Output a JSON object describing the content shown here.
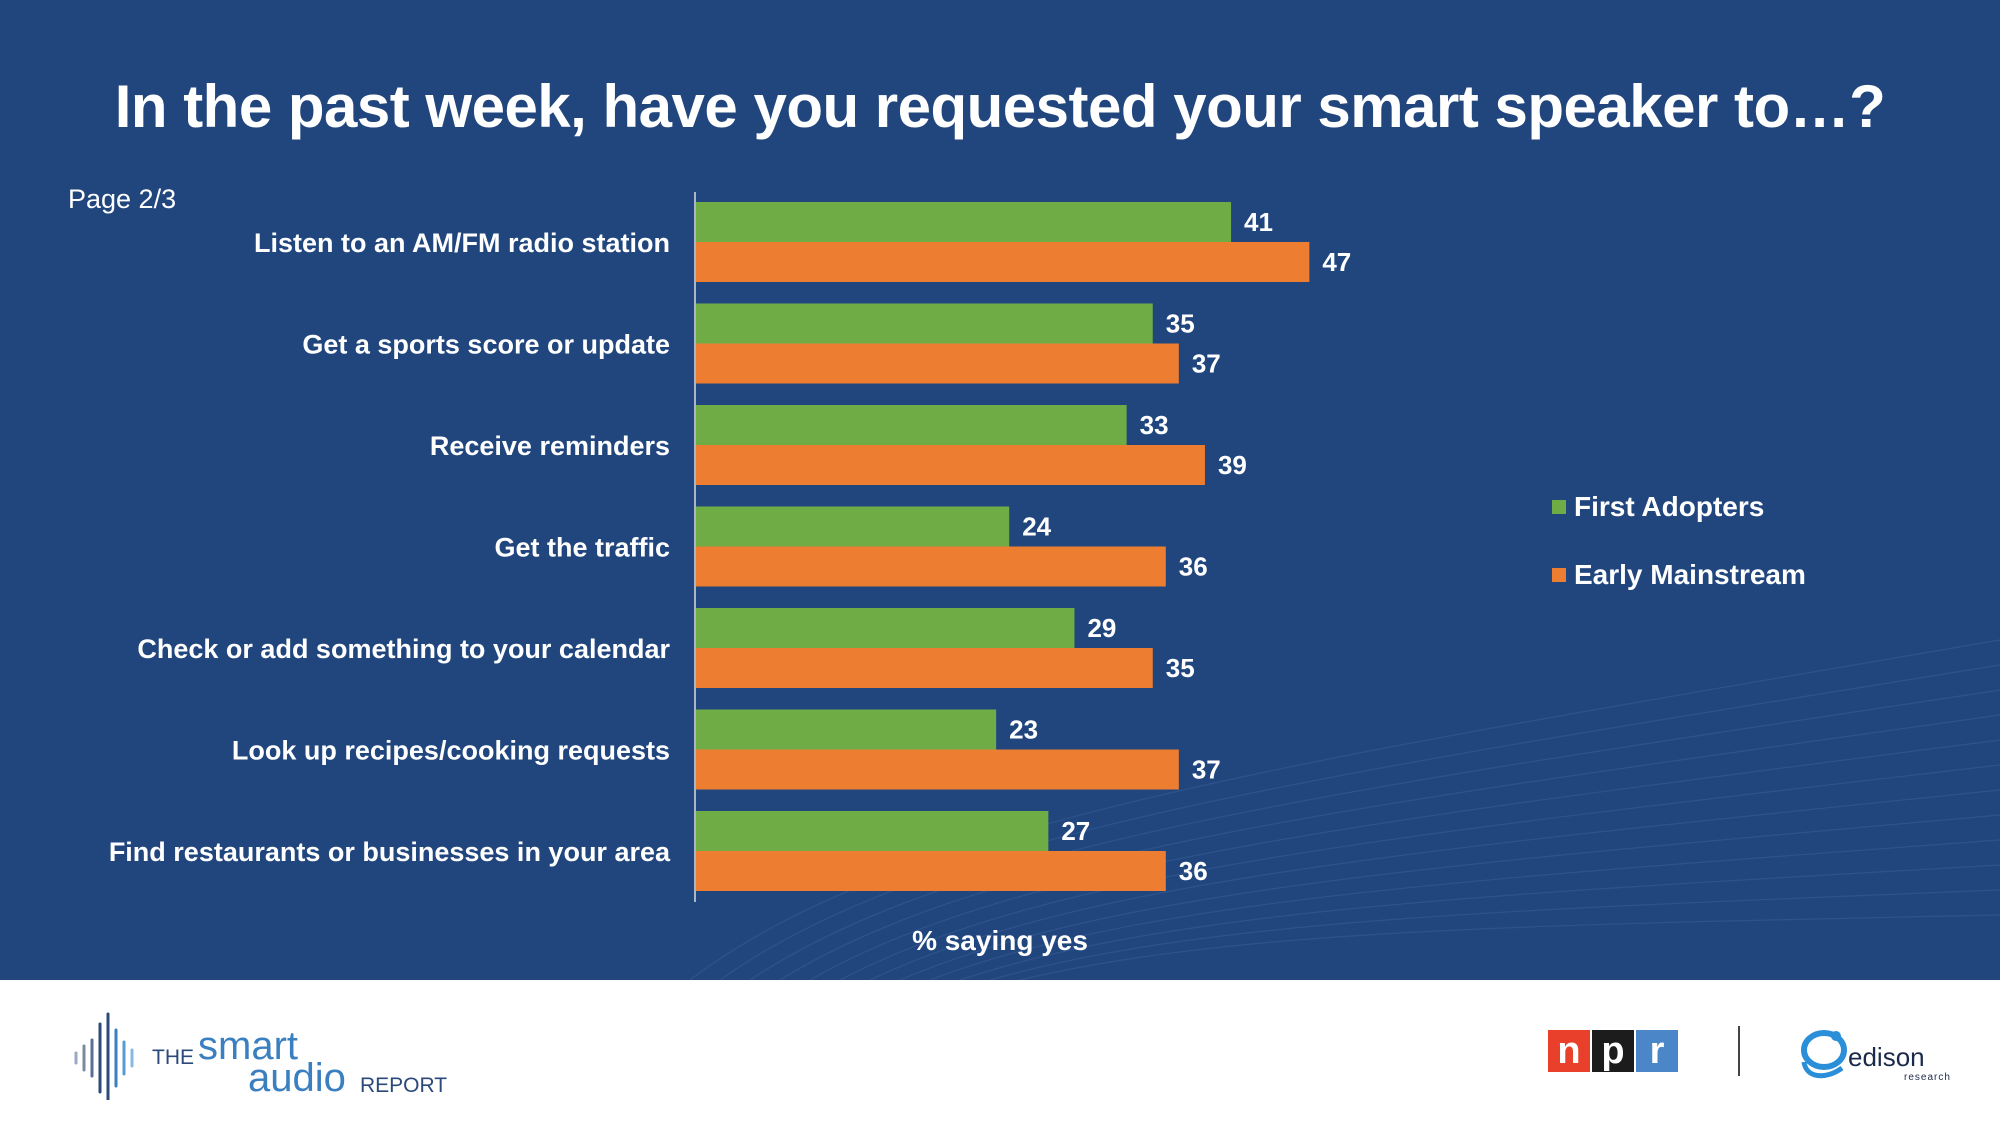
{
  "title": "In the past week, have you requested your smart speaker to…?",
  "page_note": "Page 2/3",
  "colors": {
    "background": "#21467e",
    "first_adopters": "#6fac46",
    "early_mainstream": "#ec7d31",
    "text": "#ffffff"
  },
  "legend": {
    "items": [
      {
        "label": "First Adopters",
        "color": "#6fac46"
      },
      {
        "label": "Early Mainstream",
        "color": "#ec7d31"
      }
    ]
  },
  "chart_data": {
    "type": "bar",
    "orientation": "horizontal",
    "title": "In the past week, have you requested your smart speaker to…?",
    "xlabel": "% saying yes",
    "ylabel": "",
    "xlim": [
      0,
      100
    ],
    "categories": [
      "Listen to an AM/FM radio station",
      "Get a sports score or update",
      "Receive reminders",
      "Get the traffic",
      "Check or add something to your calendar",
      "Look up recipes/cooking requests",
      "Find restaurants or businesses in your area"
    ],
    "series": [
      {
        "name": "First Adopters",
        "color": "#6fac46",
        "values": [
          41,
          35,
          33,
          24,
          29,
          23,
          27
        ]
      },
      {
        "name": "Early Mainstream",
        "color": "#ec7d31",
        "values": [
          47,
          37,
          39,
          36,
          35,
          37,
          36
        ]
      }
    ],
    "legend_position": "right",
    "grid": false
  },
  "footer": {
    "logo_left": {
      "the": "THE",
      "smart": "smart",
      "audio": "audio",
      "report": "REPORT"
    },
    "npr": [
      "n",
      "p",
      "r"
    ],
    "edison": {
      "word": "edison",
      "sub": "research"
    }
  }
}
